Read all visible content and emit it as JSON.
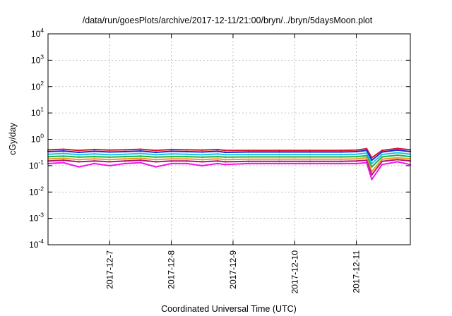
{
  "chart_data": {
    "type": "line",
    "title": "/data/run/goesPlots/archive/2017-12-11/21:00/bryn/../bryn/5daysMoon.plot",
    "xlabel": "Coordinated Universal Time (UTC)",
    "ylabel": "cGy/day",
    "yscale": "log",
    "ylim": [
      0.0001,
      10000
    ],
    "xlim": [
      "2017-12-06 00:00",
      "2017-12-11 21:00"
    ],
    "grid": true,
    "legend": "none",
    "y_ticks": [
      {
        "base": "10",
        "exp": "4",
        "value": 10000
      },
      {
        "base": "10",
        "exp": "3",
        "value": 1000
      },
      {
        "base": "10",
        "exp": "2",
        "value": 100
      },
      {
        "base": "10",
        "exp": "1",
        "value": 10
      },
      {
        "base": "10",
        "exp": "0",
        "value": 1
      },
      {
        "base": "10",
        "exp": "-1",
        "value": 0.1
      },
      {
        "base": "10",
        "exp": "-2",
        "value": 0.01
      },
      {
        "base": "10",
        "exp": "-3",
        "value": 0.001
      },
      {
        "base": "10",
        "exp": "-4",
        "value": 0.0001
      }
    ],
    "x_ticks": [
      "2017-12-7",
      "2017-12-8",
      "2017-12-9",
      "2017-12-10",
      "2017-12-11"
    ],
    "series": [
      {
        "color": "#e0142a",
        "x": [
          "2017-12-06 00:00",
          "2017-12-06 06:00",
          "2017-12-06 12:00",
          "2017-12-06 18:00",
          "2017-12-07 00:00",
          "2017-12-07 06:00",
          "2017-12-07 12:00",
          "2017-12-07 18:00",
          "2017-12-08 00:00",
          "2017-12-08 06:00",
          "2017-12-08 12:00",
          "2017-12-08 18:00",
          "2017-12-08 21:00",
          "2017-12-09 06:00",
          "2017-12-09 18:00",
          "2017-12-10 06:00",
          "2017-12-10 18:00",
          "2017-12-11 00:00",
          "2017-12-11 04:00",
          "2017-12-11 06:00",
          "2017-12-11 10:00",
          "2017-12-11 16:00",
          "2017-12-11 21:00"
        ],
        "y": [
          0.4,
          0.42,
          0.38,
          0.41,
          0.39,
          0.4,
          0.42,
          0.38,
          0.41,
          0.4,
          0.39,
          0.41,
          0.38,
          0.38,
          0.38,
          0.38,
          0.38,
          0.39,
          0.44,
          0.2,
          0.38,
          0.45,
          0.4
        ]
      },
      {
        "color": "#1a2ad8",
        "x": [
          "2017-12-06 00:00",
          "2017-12-06 06:00",
          "2017-12-06 12:00",
          "2017-12-06 18:00",
          "2017-12-07 00:00",
          "2017-12-07 06:00",
          "2017-12-07 12:00",
          "2017-12-07 18:00",
          "2017-12-08 00:00",
          "2017-12-08 06:00",
          "2017-12-08 12:00",
          "2017-12-08 18:00",
          "2017-12-08 21:00",
          "2017-12-09 06:00",
          "2017-12-09 18:00",
          "2017-12-10 06:00",
          "2017-12-10 18:00",
          "2017-12-11 00:00",
          "2017-12-11 04:00",
          "2017-12-11 06:00",
          "2017-12-11 10:00",
          "2017-12-11 16:00",
          "2017-12-11 21:00"
        ],
        "y": [
          0.34,
          0.36,
          0.32,
          0.35,
          0.33,
          0.34,
          0.36,
          0.32,
          0.35,
          0.34,
          0.33,
          0.35,
          0.32,
          0.33,
          0.33,
          0.33,
          0.33,
          0.34,
          0.38,
          0.16,
          0.33,
          0.39,
          0.34
        ]
      },
      {
        "color": "#18c8e8",
        "x": [
          "2017-12-06 00:00",
          "2017-12-06 06:00",
          "2017-12-06 12:00",
          "2017-12-06 18:00",
          "2017-12-07 00:00",
          "2017-12-07 06:00",
          "2017-12-07 12:00",
          "2017-12-07 18:00",
          "2017-12-08 00:00",
          "2017-12-08 06:00",
          "2017-12-08 12:00",
          "2017-12-08 18:00",
          "2017-12-08 21:00",
          "2017-12-09 06:00",
          "2017-12-09 18:00",
          "2017-12-10 06:00",
          "2017-12-10 18:00",
          "2017-12-11 00:00",
          "2017-12-11 04:00",
          "2017-12-11 06:00",
          "2017-12-11 10:00",
          "2017-12-11 16:00",
          "2017-12-11 21:00"
        ],
        "y": [
          0.27,
          0.29,
          0.26,
          0.28,
          0.26,
          0.27,
          0.29,
          0.26,
          0.28,
          0.27,
          0.26,
          0.28,
          0.26,
          0.265,
          0.265,
          0.265,
          0.265,
          0.27,
          0.3,
          0.12,
          0.265,
          0.31,
          0.27
        ]
      },
      {
        "color": "#20b04a",
        "x": [
          "2017-12-06 00:00",
          "2017-12-06 06:00",
          "2017-12-06 12:00",
          "2017-12-06 18:00",
          "2017-12-07 00:00",
          "2017-12-07 06:00",
          "2017-12-07 12:00",
          "2017-12-07 18:00",
          "2017-12-08 00:00",
          "2017-12-08 06:00",
          "2017-12-08 12:00",
          "2017-12-08 18:00",
          "2017-12-08 21:00",
          "2017-12-09 06:00",
          "2017-12-09 18:00",
          "2017-12-10 06:00",
          "2017-12-10 18:00",
          "2017-12-11 00:00",
          "2017-12-11 04:00",
          "2017-12-11 06:00",
          "2017-12-11 10:00",
          "2017-12-11 16:00",
          "2017-12-11 21:00"
        ],
        "y": [
          0.22,
          0.23,
          0.21,
          0.22,
          0.21,
          0.22,
          0.23,
          0.21,
          0.22,
          0.22,
          0.21,
          0.22,
          0.21,
          0.215,
          0.215,
          0.215,
          0.215,
          0.22,
          0.24,
          0.09,
          0.215,
          0.25,
          0.22
        ]
      },
      {
        "color": "#e8a020",
        "x": [
          "2017-12-06 00:00",
          "2017-12-06 06:00",
          "2017-12-06 12:00",
          "2017-12-06 18:00",
          "2017-12-07 00:00",
          "2017-12-07 06:00",
          "2017-12-07 12:00",
          "2017-12-07 18:00",
          "2017-12-08 00:00",
          "2017-12-08 06:00",
          "2017-12-08 12:00",
          "2017-12-08 18:00",
          "2017-12-08 21:00",
          "2017-12-09 06:00",
          "2017-12-09 18:00",
          "2017-12-10 06:00",
          "2017-12-10 18:00",
          "2017-12-11 00:00",
          "2017-12-11 04:00",
          "2017-12-11 06:00",
          "2017-12-11 10:00",
          "2017-12-11 16:00",
          "2017-12-11 21:00"
        ],
        "y": [
          0.18,
          0.19,
          0.17,
          0.18,
          0.17,
          0.18,
          0.19,
          0.17,
          0.18,
          0.18,
          0.17,
          0.18,
          0.17,
          0.175,
          0.175,
          0.175,
          0.175,
          0.18,
          0.2,
          0.06,
          0.175,
          0.2,
          0.18
        ]
      },
      {
        "color": "#b01870",
        "x": [
          "2017-12-06 00:00",
          "2017-12-06 06:00",
          "2017-12-06 12:00",
          "2017-12-06 18:00",
          "2017-12-07 00:00",
          "2017-12-07 06:00",
          "2017-12-07 12:00",
          "2017-12-07 18:00",
          "2017-12-08 00:00",
          "2017-12-08 06:00",
          "2017-12-08 12:00",
          "2017-12-08 18:00",
          "2017-12-08 21:00",
          "2017-12-09 06:00",
          "2017-12-09 18:00",
          "2017-12-10 06:00",
          "2017-12-10 18:00",
          "2017-12-11 00:00",
          "2017-12-11 04:00",
          "2017-12-11 06:00",
          "2017-12-11 10:00",
          "2017-12-11 16:00",
          "2017-12-11 21:00"
        ],
        "y": [
          0.15,
          0.16,
          0.14,
          0.15,
          0.14,
          0.15,
          0.16,
          0.14,
          0.15,
          0.15,
          0.14,
          0.15,
          0.14,
          0.145,
          0.145,
          0.145,
          0.145,
          0.15,
          0.16,
          0.045,
          0.145,
          0.17,
          0.15
        ]
      },
      {
        "color": "#f018e8",
        "x": [
          "2017-12-06 00:00",
          "2017-12-06 06:00",
          "2017-12-06 12:00",
          "2017-12-06 18:00",
          "2017-12-07 00:00",
          "2017-12-07 06:00",
          "2017-12-07 12:00",
          "2017-12-07 18:00",
          "2017-12-08 00:00",
          "2017-12-08 06:00",
          "2017-12-08 12:00",
          "2017-12-08 18:00",
          "2017-12-08 21:00",
          "2017-12-09 06:00",
          "2017-12-09 18:00",
          "2017-12-10 06:00",
          "2017-12-10 18:00",
          "2017-12-11 00:00",
          "2017-12-11 04:00",
          "2017-12-11 06:00",
          "2017-12-11 10:00",
          "2017-12-11 16:00",
          "2017-12-11 21:00"
        ],
        "y": [
          0.12,
          0.13,
          0.09,
          0.12,
          0.1,
          0.12,
          0.13,
          0.09,
          0.12,
          0.12,
          0.1,
          0.12,
          0.11,
          0.12,
          0.12,
          0.12,
          0.12,
          0.12,
          0.13,
          0.03,
          0.11,
          0.14,
          0.11
        ]
      }
    ]
  }
}
